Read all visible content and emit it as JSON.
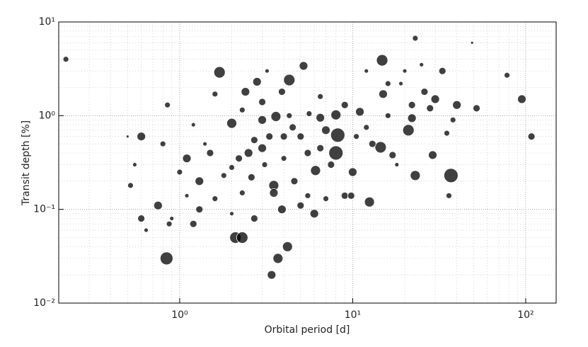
{
  "chart_data": {
    "type": "scatter",
    "x_label": "Orbital period [d]",
    "y_label": "Transit depth [%]",
    "xlim": [
      0.2,
      150
    ],
    "ylim": [
      0.01,
      10
    ],
    "log_x": true,
    "log_y": true,
    "grid": true,
    "minor_grid": true,
    "color": "#000000",
    "xticks": [
      {
        "value": 1,
        "label": "10⁰"
      },
      {
        "value": 10,
        "label": "10¹"
      },
      {
        "value": 100,
        "label": "10²"
      }
    ],
    "yticks": [
      {
        "value": 0.01,
        "label": "10⁻²"
      },
      {
        "value": 0.1,
        "label": "10⁻¹"
      },
      {
        "value": 1,
        "label": "10⁰"
      },
      {
        "value": 10,
        "label": "10¹"
      }
    ],
    "x": [
      0.22,
      0.84,
      0.6,
      0.85,
      0.8,
      1.1,
      0.75,
      0.6,
      0.64,
      0.52,
      0.55,
      0.87,
      1.2,
      1.3,
      1.7,
      1.6,
      1.5,
      2.1,
      2.3,
      2.0,
      2.4,
      2.8,
      3.0,
      3.6,
      3.5,
      3.5,
      3.7,
      3.4,
      4.2,
      4.3,
      5.2,
      3.9,
      5.0,
      6.0,
      6.1,
      8.0,
      8.2,
      8.0,
      10.0,
      9.0,
      9.8,
      12.5,
      14.5,
      14.8,
      15.0,
      17,
      21,
      22,
      23,
      23,
      29,
      30,
      33,
      37,
      40,
      52,
      78,
      95,
      108,
      35,
      36,
      49,
      19,
      12,
      11,
      9,
      7,
      6.5,
      6.5,
      5.0,
      4.5,
      4.0,
      3.3,
      3.0,
      2.7,
      2.5,
      2.2,
      2.0,
      1.8,
      2.6,
      3.1,
      4.0,
      5.5,
      6.5,
      7.5,
      1.3,
      1.6,
      2.7,
      2.0,
      2.3,
      4.6,
      5.5,
      7.0,
      1.0,
      1.4,
      1.2,
      2.3,
      3.0,
      3.9,
      4.3,
      5.6,
      10.5,
      12.0,
      13,
      16,
      18,
      22,
      26,
      28,
      38,
      20,
      25,
      3.2,
      1.1,
      0.9,
      0.5,
      16
    ],
    "values": [
      4.0,
      0.03,
      0.6,
      1.3,
      0.5,
      0.35,
      0.11,
      0.08,
      0.06,
      0.18,
      0.3,
      0.07,
      0.07,
      0.2,
      2.9,
      1.7,
      0.4,
      0.05,
      0.05,
      0.83,
      1.8,
      2.3,
      0.9,
      0.98,
      0.18,
      0.15,
      0.03,
      0.02,
      0.04,
      2.4,
      3.4,
      0.1,
      0.11,
      0.09,
      0.26,
      0.4,
      0.62,
      1.02,
      0.25,
      0.14,
      0.14,
      0.12,
      0.46,
      3.9,
      1.7,
      0.38,
      0.7,
      0.94,
      0.23,
      6.7,
      0.38,
      1.5,
      3.0,
      0.23,
      1.3,
      1.2,
      2.7,
      1.5,
      0.6,
      0.65,
      0.14,
      6.0,
      2.2,
      3.0,
      1.1,
      1.3,
      0.7,
      1.6,
      0.95,
      0.6,
      0.75,
      0.6,
      0.6,
      0.45,
      0.55,
      0.4,
      0.35,
      0.28,
      0.23,
      0.22,
      0.3,
      0.35,
      0.4,
      0.45,
      0.3,
      0.1,
      0.13,
      0.08,
      0.09,
      0.15,
      0.2,
      0.14,
      0.13,
      0.25,
      0.5,
      0.8,
      1.15,
      1.4,
      1.8,
      1.0,
      1.05,
      0.6,
      0.75,
      0.5,
      1.0,
      0.3,
      1.3,
      1.8,
      1.2,
      0.9,
      3.0,
      3.5,
      3.0,
      0.14,
      0.08,
      0.6,
      2.2
    ],
    "sizes": [
      4,
      9,
      6,
      4,
      4,
      6,
      6,
      5,
      3,
      4,
      3,
      4,
      5,
      6,
      8,
      4,
      5,
      8,
      8,
      7,
      6,
      6,
      6,
      7,
      7,
      6,
      7,
      6,
      7,
      8,
      6,
      6,
      5,
      6,
      7,
      10,
      10,
      7,
      6,
      5,
      5,
      7,
      8,
      8,
      6,
      5,
      8,
      6,
      7,
      4,
      6,
      6,
      5,
      10,
      6,
      5,
      4,
      6,
      5,
      4,
      4,
      2,
      3,
      3,
      6,
      5,
      6,
      4,
      6,
      5,
      5,
      5,
      5,
      6,
      5,
      6,
      5,
      4,
      4,
      5,
      4,
      4,
      5,
      5,
      5,
      5,
      4,
      5,
      3,
      4,
      5,
      4,
      4,
      4,
      3,
      3,
      4,
      5,
      5,
      4,
      4,
      4,
      4,
      5,
      4,
      3,
      5,
      5,
      5,
      4,
      3,
      3,
      3,
      3,
      3,
      2,
      4
    ]
  }
}
